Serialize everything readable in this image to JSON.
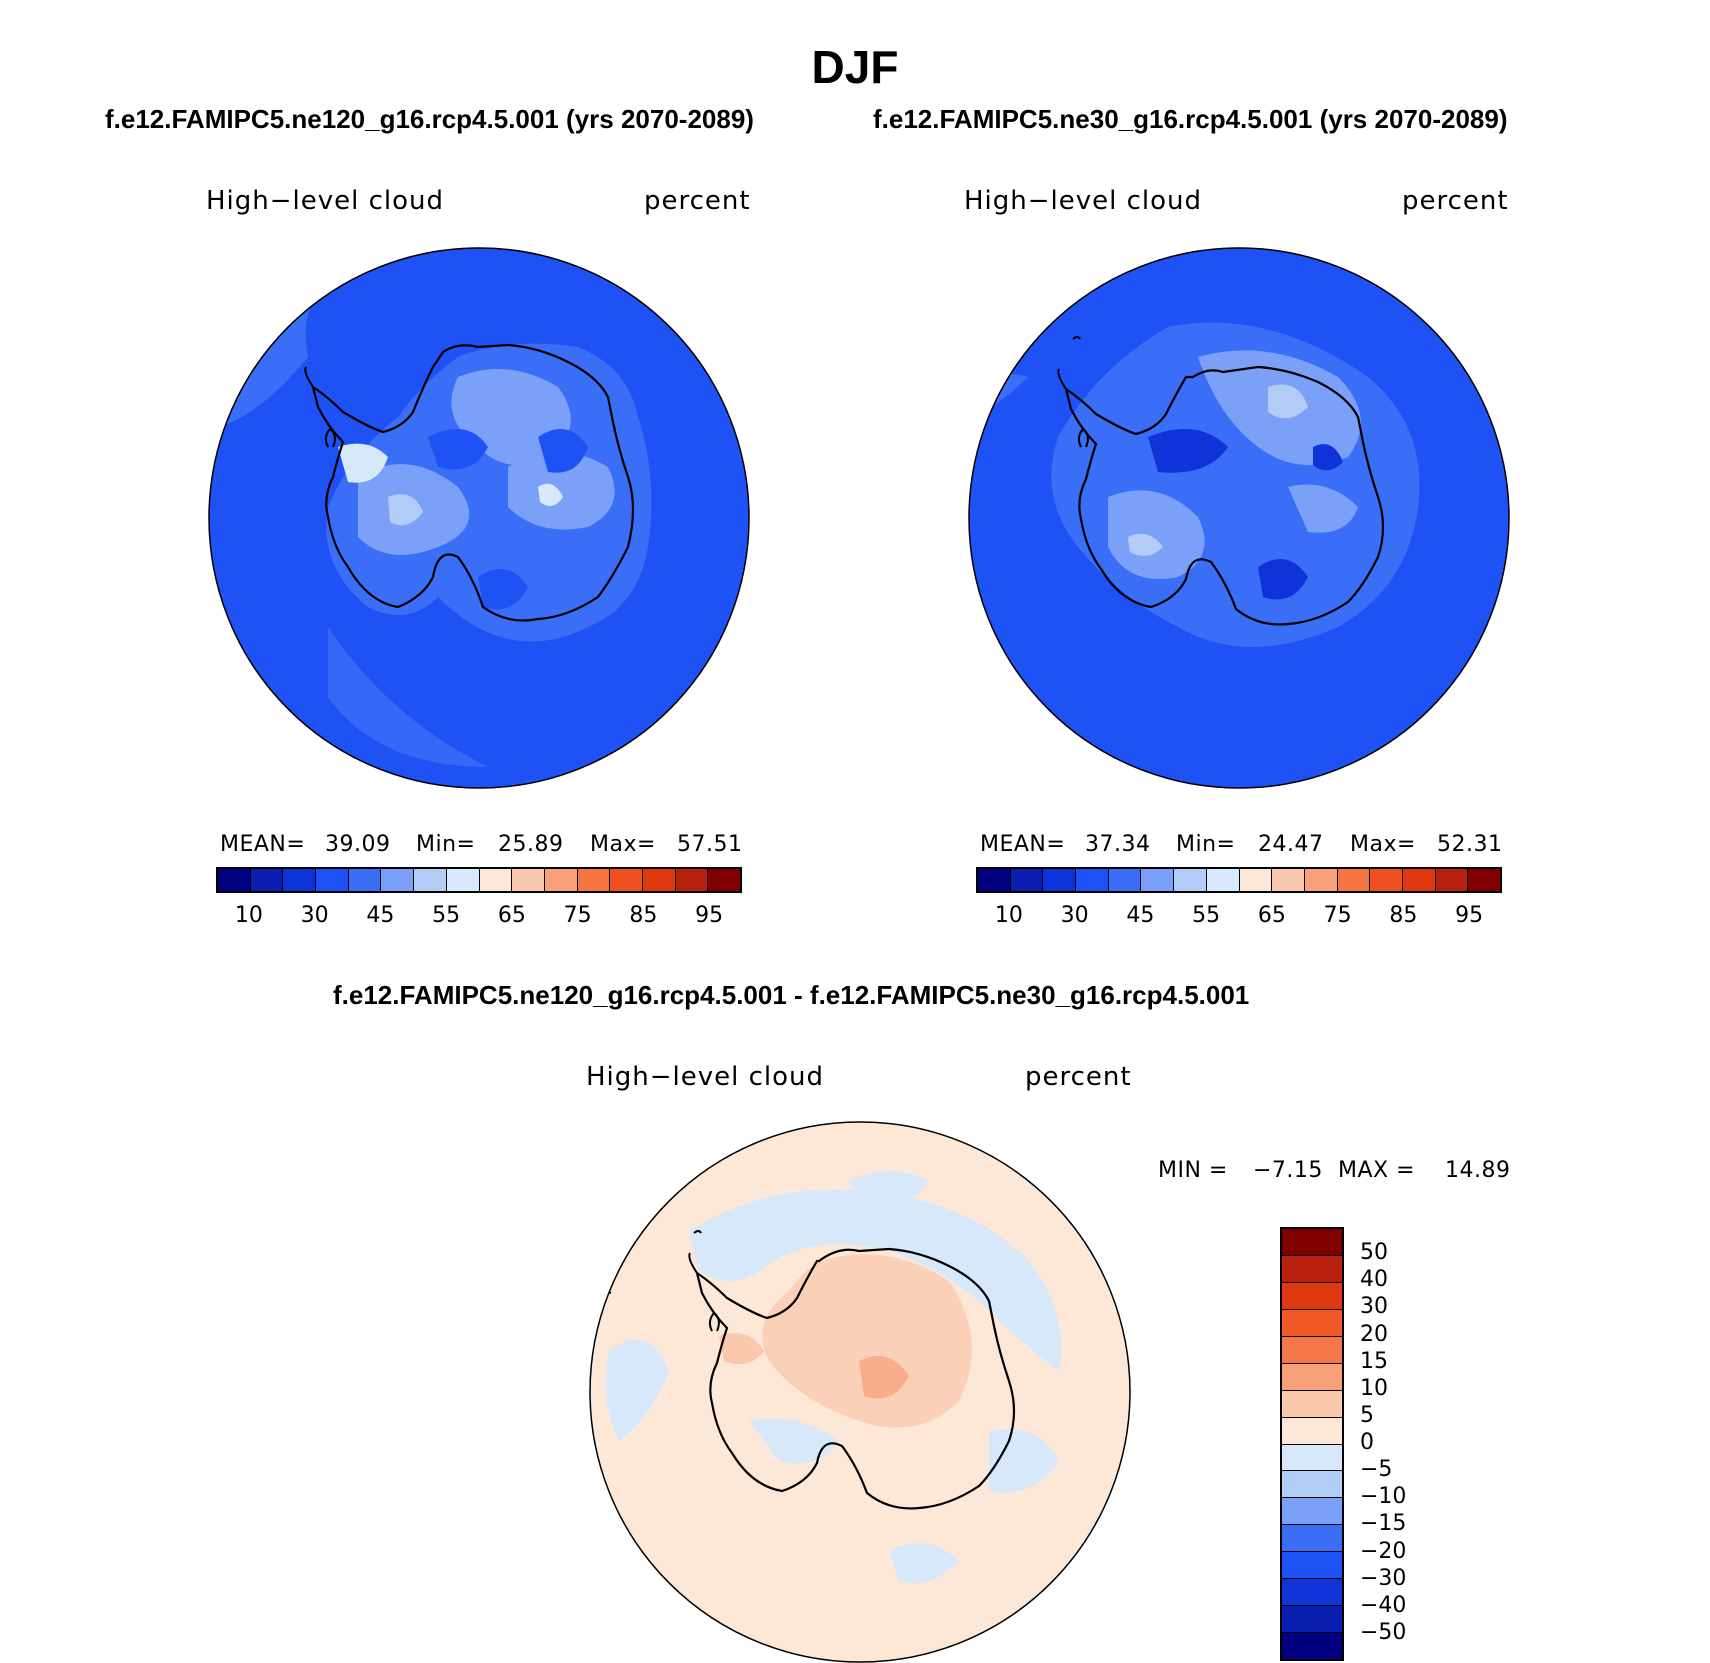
{
  "figure": {
    "title": "DJF",
    "subtitle_left": "f.e12.FAMIPC5.ne120_g16.rcp4.5.001 (yrs 2070-2089)",
    "subtitle_right": "f.e12.FAMIPC5.ne30_g16.rcp4.5.001 (yrs 2070-2089)",
    "diff_title": "f.e12.FAMIPC5.ne120_g16.rcp4.5.001 - f.e12.FAMIPC5.ne30_g16.rcp4.5.001"
  },
  "panels": [
    {
      "variable": "High−level cloud",
      "units": "percent",
      "mean_label": "MEAN=",
      "mean": "39.09",
      "min_label": "Min=",
      "min": "25.89",
      "max_label": "Max=",
      "max": "57.51"
    },
    {
      "variable": "High−level cloud",
      "units": "percent",
      "mean_label": "MEAN=",
      "mean": "37.34",
      "min_label": "Min=",
      "min": "24.47",
      "max_label": "Max=",
      "max": "52.31"
    }
  ],
  "diff_panel": {
    "variable": "High−level cloud",
    "units": "percent",
    "min_label": "MIN =",
    "min": "−7.15",
    "max_label": "MAX =",
    "max": "14.89"
  },
  "colorbar_abs": {
    "ticks": [
      "10",
      "30",
      "45",
      "55",
      "65",
      "75",
      "85",
      "95"
    ],
    "colors": [
      "#000080",
      "#0a1fb0",
      "#0d33d9",
      "#1f52f5",
      "#3b6ef7",
      "#7aa0f7",
      "#b3ccf7",
      "#d6e8fa",
      "#fde8d8",
      "#f9c8ad",
      "#f7a07a",
      "#f57542",
      "#f0501e",
      "#e0380f",
      "#b82010",
      "#800000"
    ]
  },
  "colorbar_diff": {
    "ticks": [
      "50",
      "40",
      "30",
      "20",
      "15",
      "10",
      "5",
      "0",
      "−5",
      "−10",
      "−15",
      "−20",
      "−30",
      "−40",
      "−50"
    ],
    "colors": [
      "#800000",
      "#b82010",
      "#e0380f",
      "#f05a24",
      "#f5774a",
      "#f7a07a",
      "#f9c8ad",
      "#fde8d8",
      "#d6e8fa",
      "#b3ccf7",
      "#7aa0f7",
      "#3b6ef7",
      "#1f52f5",
      "#0d33d9",
      "#0a1fb0",
      "#000080"
    ]
  }
}
